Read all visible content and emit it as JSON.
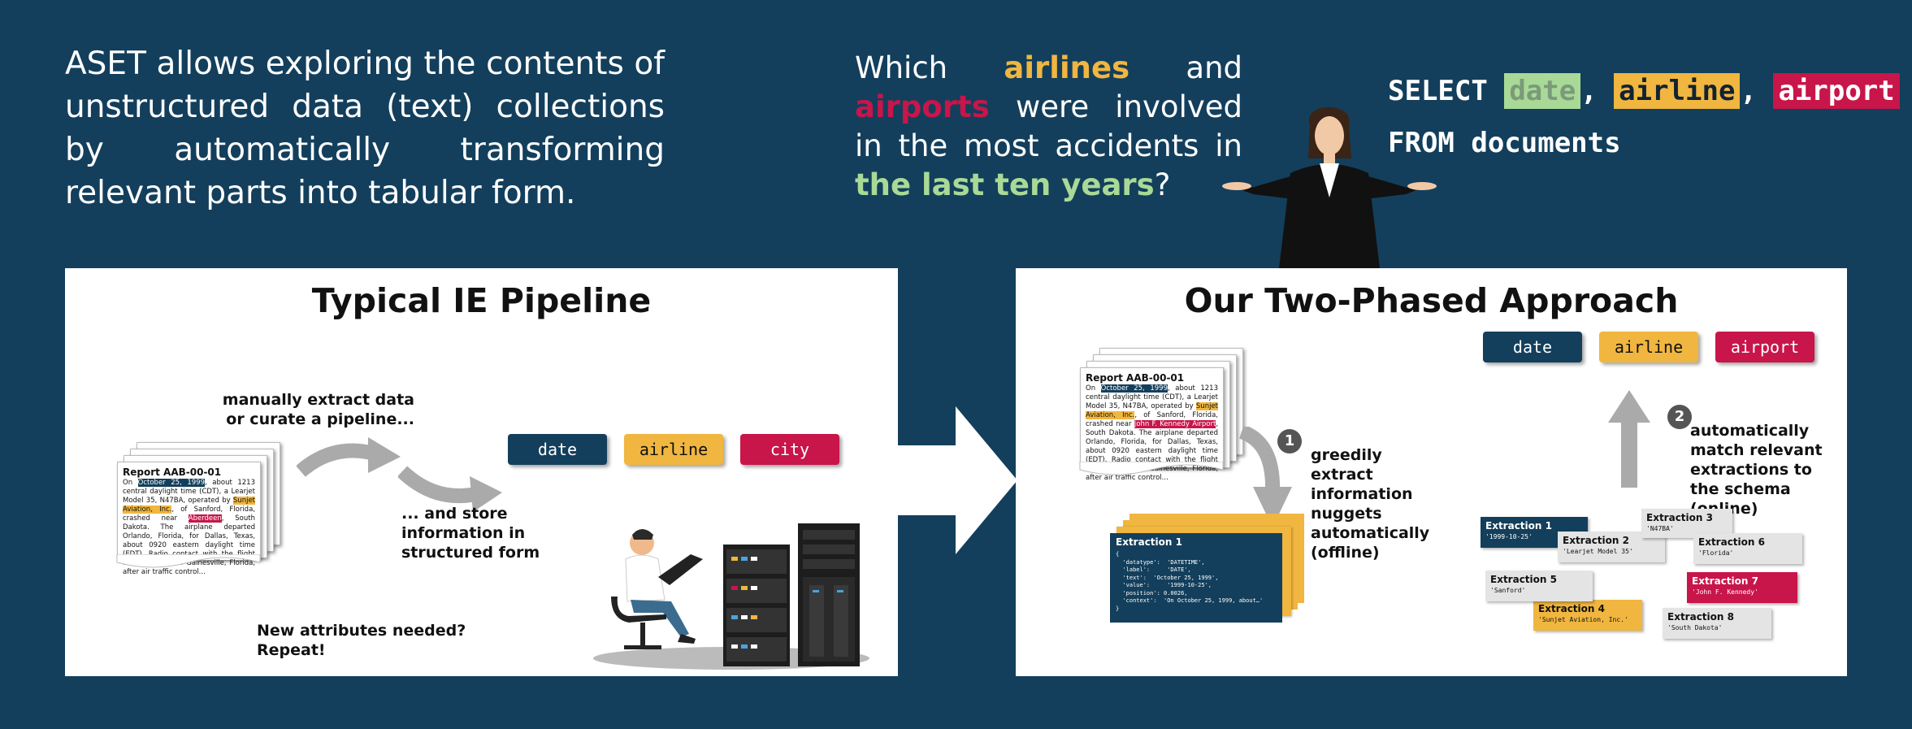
{
  "intro": "ASET allows exploring the contents of unstructured data (text) collections by automatically transforming relevant parts into tabular form.",
  "question": {
    "p1": "Which ",
    "airlines": "airlines",
    "p2": " and ",
    "airports": "airports",
    "p3": " were involved in the most accidents in ",
    "timeframe": "the last ten years",
    "p4": "?"
  },
  "sql": {
    "select": "SELECT",
    "date": "date",
    "airline": "airline",
    "airport": "airport",
    "comma": ",",
    "from": "FROM documents"
  },
  "left_panel": {
    "title": "Typical IE Pipeline",
    "caption_extract": "manually extract data or curate a pipeline...",
    "caption_store": "... and store information in structured form",
    "caption_repeat": "New attributes needed? Repeat!",
    "chips": [
      "date",
      "airline",
      "city"
    ]
  },
  "right_panel": {
    "title": "Our Two-Phased Approach",
    "chips": [
      "date",
      "airline",
      "airport"
    ],
    "step1_num": "1",
    "step1_text": "greedily extract information nuggets automatically (offline)",
    "step2_num": "2",
    "step2_text": "automatically match relevant extractions to the schema (online)",
    "extraction_card": {
      "title": "Extraction 1",
      "lines": [
        "{",
        "  'datatype':  'DATETIME',",
        "  'label':     'DATE',",
        "  'text':  'October 25, 1999',",
        "  'value':     '1999-10-25',",
        "  'position': 0.0026,",
        "  'context':  'On October 25, 1999, about…'",
        "}"
      ]
    },
    "extractions": [
      {
        "title": "Extraction 1",
        "value": "'1999-10-25'"
      },
      {
        "title": "Extraction 2",
        "value": "'Learjet Model 35'"
      },
      {
        "title": "Extraction 3",
        "value": "'N47BA'"
      },
      {
        "title": "Extraction 4",
        "value": "'Sunjet Aviation, Inc.'"
      },
      {
        "title": "Extraction 5",
        "value": "'Sanford'"
      },
      {
        "title": "Extraction 6",
        "value": "'Florida'"
      },
      {
        "title": "Extraction 7",
        "value": "'John F. Kennedy'"
      },
      {
        "title": "Extraction 8",
        "value": "'South Dakota'"
      }
    ]
  },
  "report": {
    "title": "Report AAB-00-01",
    "a": "On ",
    "date": "October 25, 1999",
    "b": ", about 1213 central daylight time (CDT), a Learjet Model 35, N47BA, operated by ",
    "airline": "Sunjet Aviation, Inc.",
    "c": ", of Sanford, Florida, crashed near ",
    "place": "Aberdeen",
    "place2": "John F. Kennedy Airport",
    "d": ", South Dakota. The airplane departed Orlando, Florida, for Dallas, Texas, about 0920 eastern daylight time (EDT). Radio contact with the flight was lost north of Gainesville, Florida, after air traffic control..."
  },
  "colors": {
    "navy": "#133f5c",
    "yellow": "#f0b63f",
    "red": "#c8154a",
    "green": "#a9d996"
  }
}
